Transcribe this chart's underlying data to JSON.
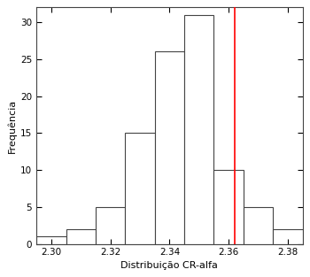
{
  "title": "",
  "xlabel": "Distribuição CR-alfa",
  "ylabel": "Frequência",
  "xlim": [
    2.295,
    2.385
  ],
  "ylim": [
    0,
    32
  ],
  "yticks": [
    0,
    5,
    10,
    15,
    20,
    25,
    30
  ],
  "xticks": [
    2.3,
    2.32,
    2.34,
    2.36,
    2.38
  ],
  "red_line_x": 2.362,
  "bin_edges": [
    2.295,
    2.305,
    2.315,
    2.325,
    2.335,
    2.345,
    2.355,
    2.365,
    2.375,
    2.385
  ],
  "counts": [
    1,
    2,
    5,
    15,
    26,
    31,
    10,
    5,
    2
  ],
  "bar_facecolor": "#ffffff",
  "bar_edgecolor": "#444444",
  "bar_linewidth": 0.8,
  "axis_linewidth": 0.8,
  "xlabel_fontsize": 8,
  "ylabel_fontsize": 8,
  "tick_fontsize": 7.5,
  "bg_color": "#ffffff"
}
